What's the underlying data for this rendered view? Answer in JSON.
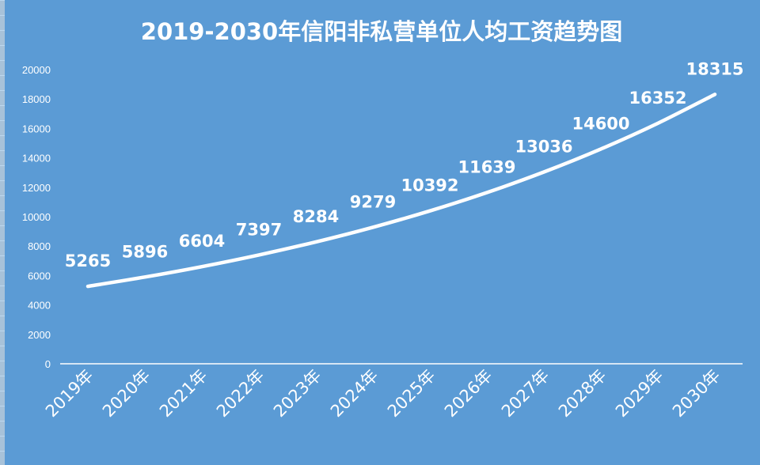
{
  "chart_data": {
    "type": "line",
    "title": "2019-2030年信阳非私营单位人均工资趋势图",
    "xlabel": "",
    "ylabel": "",
    "categories": [
      "2019年",
      "2020年",
      "2021年",
      "2022年",
      "2023年",
      "2024年",
      "2025年",
      "2026年",
      "2027年",
      "2028年",
      "2029年",
      "2030年"
    ],
    "series": [
      {
        "values": [
          5265,
          5896,
          6604,
          7397,
          8284,
          9279,
          10392,
          11639,
          13036,
          14600,
          16352,
          18315
        ]
      }
    ],
    "ylim": [
      0,
      20000
    ],
    "yticks": [
      "0",
      "2000",
      "4000",
      "6000",
      "8000",
      "10000",
      "12000",
      "14000",
      "16000",
      "18000",
      "20000"
    ],
    "grid": false,
    "legend": "none",
    "data_labels": true,
    "colors": {
      "background": "#5b9bd5",
      "line": "#ffffff",
      "text": "#ffffff",
      "drop_lines": "#ffffff"
    }
  }
}
